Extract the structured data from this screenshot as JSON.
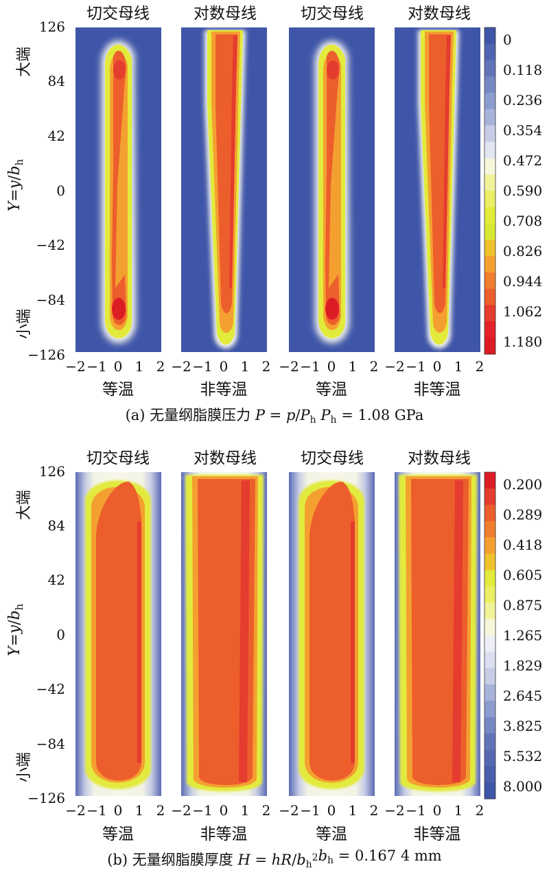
{
  "panels": [
    {
      "caption": {
        "prefix": "(a) 无量纲脂膜压力 ",
        "var": "P",
        "eq": " = ",
        "numer": "p",
        "slash": "/",
        "den": "P",
        "den_sub": "h",
        "mid": "  ",
        "ref": "P",
        "ref_sub": "h",
        "value": " = 1.08 GPa"
      },
      "colorbar_ticks": [
        "0",
        "0.118",
        "0.236",
        "0.354",
        "0.472",
        "0.590",
        "0.708",
        "0.826",
        "0.944",
        "1.062",
        "1.180"
      ],
      "colorbar_colors": [
        "#3f55a8",
        "#4f63b0",
        "#6174b8",
        "#7688c4",
        "#8c9ccf",
        "#a8b3db",
        "#c6cce6",
        "#e2e6f2",
        "#f6f6dc",
        "#f2f29a",
        "#ecee63",
        "#e2ea3c",
        "#d8e832",
        "#f0c22c",
        "#f4a030",
        "#f07e2e",
        "#ec5e2c",
        "#e43c2e",
        "#e22228",
        "#dc1c24"
      ]
    },
    {
      "caption": {
        "prefix": "(b) 无量纲脂膜厚度 ",
        "var": "H",
        "eq": " = ",
        "numer": "hR",
        "slash": "/",
        "den": "b",
        "den_sub": "h",
        "den_sup": "2",
        "mid": "",
        "ref": "b",
        "ref_sub": "h",
        "value": " = 0.167 4 mm"
      },
      "colorbar_ticks": [
        "0.200",
        "0.289",
        "0.418",
        "0.605",
        "0.875",
        "1.265",
        "1.829",
        "2.645",
        "3.825",
        "5.532",
        "8.000"
      ],
      "colorbar_colors": [
        "#dc1c24",
        "#e43c2e",
        "#ec5e2c",
        "#f07e2e",
        "#f4a030",
        "#f0c22c",
        "#e2ea3c",
        "#ecee63",
        "#f2f29a",
        "#f6f6dc",
        "#eeeef6",
        "#dcdff0",
        "#c6cce6",
        "#a8b3db",
        "#8c9ccf",
        "#7688c4",
        "#6174b8",
        "#5668b2",
        "#4a5eac",
        "#3f55a8"
      ]
    }
  ],
  "subplot_titles": [
    "切交母线",
    "对数母线",
    "切交母线",
    "对数母线"
  ],
  "condition_labels": [
    "等温",
    "非等温",
    "等温",
    "非等温"
  ],
  "x_tick_labels": [
    "−2",
    "−1",
    "0",
    "1",
    "2"
  ],
  "y_tick_labels": [
    "126",
    "84",
    "42",
    "0",
    "−42",
    "−84",
    "−126"
  ],
  "y_axis_label": {
    "var": "Y",
    "eq": "=",
    "num": "y",
    "slash": "/",
    "den": "b",
    "sub": "h"
  },
  "big_end_label": "大端",
  "small_end_label": "小端",
  "chart_data": [
    {
      "type": "heatmap",
      "title": "(a) 无量纲脂膜压力 P = p/P_h, P_h = 1.08 GPa",
      "xlabel": "",
      "ylabel": "Y=y/b_h",
      "xlim": [
        -2,
        2
      ],
      "ylim": [
        -126,
        126
      ],
      "x_ticks": [
        -2,
        -1,
        0,
        1,
        2
      ],
      "y_ticks": [
        126,
        84,
        42,
        0,
        -42,
        -84,
        -126
      ],
      "colorbar": {
        "ticks": [
          0,
          0.118,
          0.236,
          0.354,
          0.472,
          0.59,
          0.708,
          0.826,
          0.944,
          1.062,
          1.18
        ],
        "range": [
          0,
          1.18
        ]
      },
      "subplots": [
        {
          "title": "切交母线",
          "condition": "等温",
          "peak_value": 1.15,
          "peaks_at_y": [
            95,
            -92
          ]
        },
        {
          "title": "对数母线",
          "condition": "非等温",
          "peak_value": 1.08,
          "max_along_y": "uniform"
        },
        {
          "title": "切交母线",
          "condition": "等温",
          "peak_value": 1.15,
          "peaks_at_y": [
            95,
            -92
          ]
        },
        {
          "title": "对数母线",
          "condition": "非等温",
          "peak_value": 1.08,
          "max_along_y": "uniform"
        }
      ]
    },
    {
      "type": "heatmap",
      "title": "(b) 无量纲脂膜厚度 H = hR/b_h^2, b_h = 0.167 4 mm",
      "xlabel": "",
      "ylabel": "Y=y/b_h",
      "xlim": [
        -2,
        2
      ],
      "ylim": [
        -126,
        126
      ],
      "x_ticks": [
        -2,
        -1,
        0,
        1,
        2
      ],
      "y_ticks": [
        126,
        84,
        42,
        0,
        -42,
        -84,
        -126
      ],
      "colorbar": {
        "ticks": [
          0.2,
          0.289,
          0.418,
          0.605,
          0.875,
          1.265,
          1.829,
          2.645,
          3.825,
          5.532,
          8.0
        ],
        "range": [
          0.2,
          8.0
        ],
        "scale": "log"
      },
      "subplots": [
        {
          "title": "切交母线",
          "condition": "等温",
          "min_value": 0.35
        },
        {
          "title": "对数母线",
          "condition": "非等温",
          "min_value": 0.3
        },
        {
          "title": "切交母线",
          "condition": "等温",
          "min_value": 0.35
        },
        {
          "title": "对数母线",
          "condition": "非等温",
          "min_value": 0.3
        }
      ]
    }
  ]
}
